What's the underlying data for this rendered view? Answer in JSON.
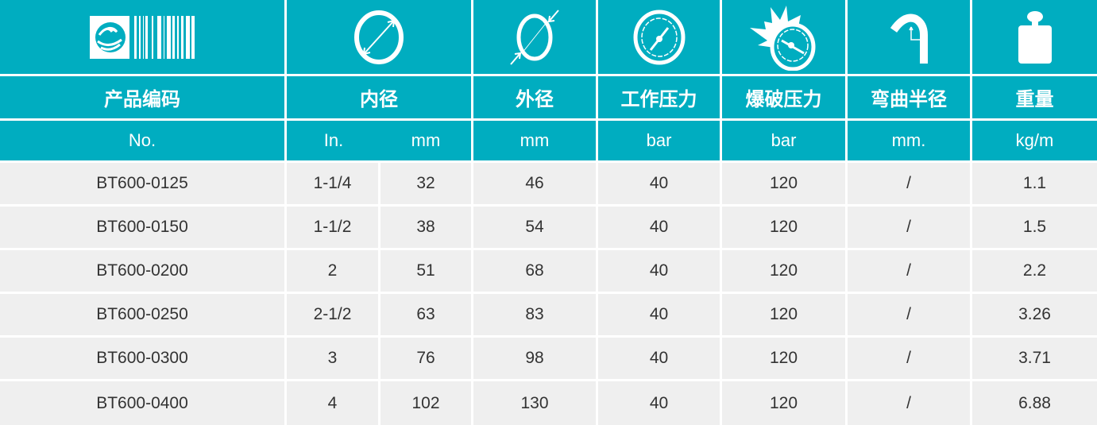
{
  "colors": {
    "header": "#00adc0",
    "row": "#efefef",
    "text": "#333333"
  },
  "icons": [
    "barcode-logo-icon",
    "inner-diameter-icon",
    "outer-diameter-icon",
    "pressure-gauge-icon",
    "burst-gauge-icon",
    "bend-radius-icon",
    "weight-icon"
  ],
  "headers": [
    "产品编码",
    "内径",
    "外径",
    "工作压力",
    "爆破压力",
    "弯曲半径",
    "重量"
  ],
  "units": [
    "No.",
    "In.",
    "mm",
    "mm",
    "bar",
    "bar",
    "mm.",
    "kg/m"
  ],
  "rows": [
    [
      "BT600-0125",
      "1-1/4",
      "32",
      "46",
      "40",
      "120",
      "/",
      "1.1"
    ],
    [
      "BT600-0150",
      "1-1/2",
      "38",
      "54",
      "40",
      "120",
      "/",
      "1.5"
    ],
    [
      "BT600-0200",
      "2",
      "51",
      "68",
      "40",
      "120",
      "/",
      "2.2"
    ],
    [
      "BT600-0250",
      "2-1/2",
      "63",
      "83",
      "40",
      "120",
      "/",
      "3.26"
    ],
    [
      "BT600-0300",
      "3",
      "76",
      "98",
      "40",
      "120",
      "/",
      "3.71"
    ],
    [
      "BT600-0400",
      "4",
      "102",
      "130",
      "40",
      "120",
      "/",
      "6.88"
    ]
  ]
}
